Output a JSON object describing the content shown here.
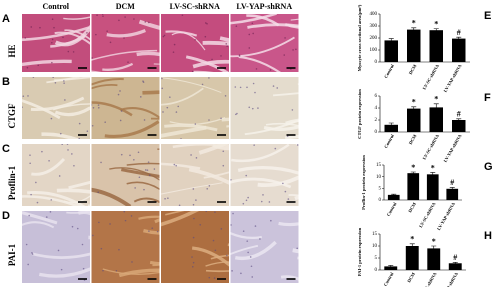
{
  "panels": {
    "columns": [
      "Control",
      "DCM",
      "LV-SC-shRNA",
      "LV-YAP-shRNA"
    ],
    "rows": [
      {
        "letter": "A",
        "label": "HE"
      },
      {
        "letter": "B",
        "label": "CTGF"
      },
      {
        "letter": "C",
        "label": "Proflin-1"
      },
      {
        "letter": "D",
        "label": "PAI-1"
      }
    ]
  },
  "chart_data": [
    {
      "type": "bar",
      "letter": "E",
      "ylabel": "Myocyte cross sectional area(μm²)",
      "color": "#000000",
      "categories": [
        "Control",
        "DCM",
        "LV-SC-shRNA",
        "LV-YAP-shRNA"
      ],
      "values": [
        180,
        270,
        265,
        195
      ],
      "errors": [
        15,
        15,
        12,
        12
      ],
      "markers": [
        null,
        "*",
        "*",
        "#"
      ],
      "ylim": [
        0,
        400
      ],
      "yticks": [
        0,
        100,
        200,
        300,
        400
      ]
    },
    {
      "type": "bar",
      "letter": "F",
      "ylabel": "CTGF protein expression",
      "color": "#000000",
      "categories": [
        "Control",
        "DCM",
        "LV-SC-shRNA",
        "LV-YAP-shRNA"
      ],
      "values": [
        1.2,
        3.9,
        4.1,
        2.0
      ],
      "errors": [
        0.3,
        0.3,
        0.6,
        0.2
      ],
      "markers": [
        null,
        "*",
        "*",
        "#"
      ],
      "ylim": [
        0,
        6
      ],
      "yticks": [
        0,
        2,
        4,
        6
      ]
    },
    {
      "type": "bar",
      "letter": "G",
      "ylabel": "Proflin-1 protein expression",
      "color": "#000000",
      "categories": [
        "Control",
        "DCM",
        "LV-SC-shRNA",
        "LV-YAP-shRNA"
      ],
      "values": [
        2.2,
        11.5,
        11,
        4.8
      ],
      "errors": [
        0.3,
        0.5,
        0.8,
        0.6
      ],
      "markers": [
        null,
        "*",
        "*",
        "#"
      ],
      "ylim": [
        0,
        15
      ],
      "yticks": [
        0,
        5,
        10,
        15
      ]
    },
    {
      "type": "bar",
      "letter": "H",
      "ylabel": "PAI-1 protein expression",
      "color": "#000000",
      "categories": [
        "Control",
        "DCM",
        "LV-SC-shRNA",
        "LV-YAP-shRNA"
      ],
      "values": [
        1.5,
        10,
        9,
        2.8
      ],
      "errors": [
        0.4,
        0.9,
        1.0,
        0.4
      ],
      "markers": [
        null,
        "*",
        "*",
        "#"
      ],
      "ylim": [
        0,
        15
      ],
      "yticks": [
        0,
        5,
        10,
        15
      ]
    }
  ]
}
